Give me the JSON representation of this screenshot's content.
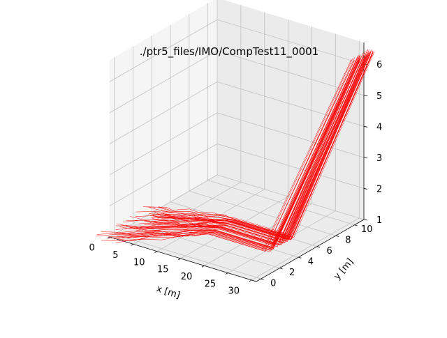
{
  "chart_data": {
    "type": "line",
    "title": "./ptr5_files/IMO/CompTest11_0001",
    "xlabel": "x [m]",
    "ylabel": "y [m]",
    "zlabel": "",
    "x_ticks": [
      "0",
      "5",
      "10",
      "15",
      "20",
      "25",
      "30"
    ],
    "y_ticks": [
      "0",
      "2",
      "4",
      "6",
      "8",
      "10"
    ],
    "z_ticks": [
      "1",
      "2",
      "3",
      "4",
      "5",
      "6"
    ],
    "xlim": [
      0,
      31
    ],
    "ylim": [
      -0.5,
      11
    ],
    "zlim": [
      1,
      6.7
    ],
    "grid": true,
    "line_color": "#ff0000",
    "pane_color": "#f2f2f2",
    "series": [
      {
        "kind": "corridor",
        "path": [
          [
            0,
            2
          ],
          [
            13,
            5
          ],
          [
            25,
            5
          ],
          [
            31,
            11
          ]
        ],
        "z": [
          1,
          1,
          1,
          6.3
        ],
        "x_spread": [
          2.5,
          0.5,
          0.8,
          0.8
        ],
        "y_spread": [
          3,
          1.5,
          1.5,
          1.0
        ]
      }
    ]
  }
}
